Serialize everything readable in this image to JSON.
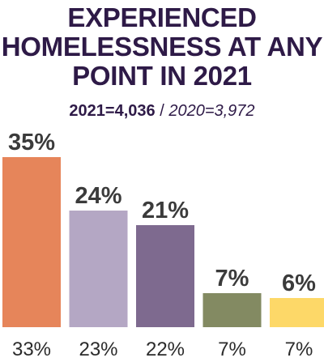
{
  "chart_data": {
    "type": "bar",
    "title": "EXPERIENCED HOMELESSNESS AT ANY POINT IN 2021",
    "subtitle": {
      "current": "2021=4,036",
      "separator": " / ",
      "previous": "2020=3,972"
    },
    "categories": [
      "",
      "",
      "",
      "",
      ""
    ],
    "series": [
      {
        "name": "2021",
        "values": [
          35,
          24,
          21,
          7,
          6
        ],
        "labels": [
          "35%",
          "24%",
          "21%",
          "7%",
          "6%"
        ]
      },
      {
        "name": "2020",
        "values": [
          33,
          23,
          22,
          7,
          7
        ],
        "labels": [
          "33%",
          "23%",
          "22%",
          "7%",
          "7%"
        ]
      }
    ],
    "colors": [
      "#e6855a",
      "#b4a7c4",
      "#7e6a8f",
      "#838a62",
      "#fdd868"
    ],
    "ylim": [
      0,
      35
    ],
    "grid": false,
    "legend": "none"
  }
}
